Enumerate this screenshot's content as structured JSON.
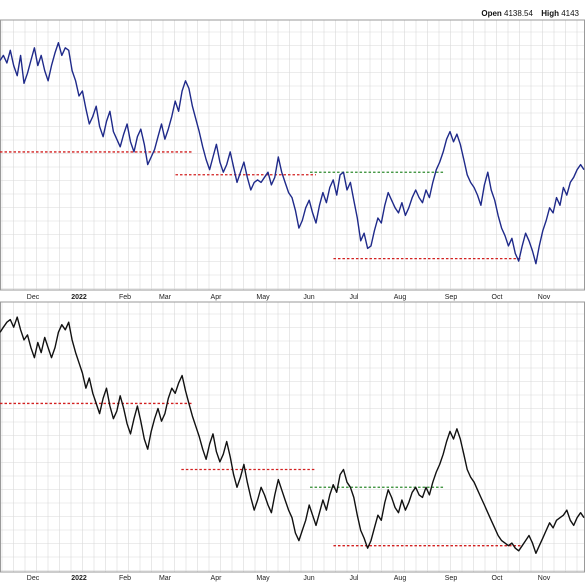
{
  "header": {
    "open_label": "Open",
    "open_value": "4138.54",
    "high_label": "High",
    "high_value": "4143"
  },
  "colors": {
    "top_series": "#1f2a8a",
    "bottom_series": "#111111",
    "support": "#d22020",
    "resistance": "#2e8b2e",
    "grid": "#d9d9d9",
    "border": "#9a9a9a"
  },
  "chart_data": [
    {
      "type": "line",
      "panel": "top",
      "x_tick_labels": [
        "Dec",
        "2022",
        "Feb",
        "Mar",
        "Apr",
        "May",
        "Jun",
        "Jul",
        "Aug",
        "Sep",
        "Oct",
        "Nov"
      ],
      "ylim": [
        0,
        100
      ],
      "grid": true,
      "series": [
        {
          "values": [
            88,
            90,
            87,
            92,
            86,
            82,
            90,
            79,
            83,
            88,
            93,
            86,
            90,
            84,
            80,
            86,
            91,
            95,
            90,
            93,
            92,
            84,
            80,
            74,
            76,
            69,
            63,
            66,
            70,
            62,
            58,
            64,
            68,
            60,
            57,
            54,
            59,
            63,
            56,
            52,
            58,
            61,
            55,
            47,
            50,
            53,
            58,
            63,
            57,
            61,
            66,
            72,
            68,
            76,
            80,
            77,
            70,
            65,
            60,
            54,
            49,
            45,
            50,
            55,
            48,
            44,
            47,
            52,
            46,
            40,
            44,
            48,
            42,
            37,
            40,
            41,
            40,
            42,
            44,
            39,
            42,
            50,
            44,
            40,
            36,
            34,
            29,
            22,
            25,
            30,
            33,
            28,
            24,
            31,
            36,
            32,
            38,
            41,
            35,
            43,
            44,
            37,
            40,
            33,
            26,
            17,
            20,
            14,
            15,
            21,
            26,
            24,
            31,
            36,
            33,
            30,
            28,
            32,
            27,
            30,
            34,
            37,
            34,
            32,
            37,
            34,
            40,
            45,
            48,
            52,
            57,
            60,
            56,
            59,
            55,
            49,
            43,
            40,
            38,
            35,
            31,
            39,
            44,
            37,
            33,
            27,
            22,
            19,
            15,
            18,
            12,
            9,
            15,
            20,
            17,
            13,
            8,
            15,
            21,
            25,
            30,
            28,
            34,
            31,
            38,
            35,
            40,
            42,
            45,
            47,
            45
          ]
        }
      ],
      "levels": [
        {
          "kind": "support",
          "value": 52,
          "x_range": [
            0,
            0.33
          ]
        },
        {
          "kind": "support",
          "value": 43,
          "x_range": [
            0.3,
            0.54
          ]
        },
        {
          "kind": "resistance",
          "value": 44,
          "x_range": [
            0.53,
            0.76
          ]
        },
        {
          "kind": "support",
          "value": 10,
          "x_range": [
            0.57,
            0.89
          ]
        }
      ]
    },
    {
      "type": "line",
      "panel": "bottom",
      "x_tick_labels": [
        "Dec",
        "2022",
        "Feb",
        "Mar",
        "Apr",
        "May",
        "Jun",
        "Jul",
        "Aug",
        "Sep",
        "Oct",
        "Nov"
      ],
      "ylim": [
        0,
        100
      ],
      "grid": true,
      "series": [
        {
          "values": [
            92,
            94,
            96,
            97,
            94,
            98,
            93,
            89,
            91,
            86,
            82,
            88,
            84,
            90,
            86,
            82,
            86,
            92,
            95,
            93,
            96,
            89,
            84,
            80,
            76,
            70,
            74,
            68,
            64,
            60,
            66,
            70,
            63,
            58,
            61,
            67,
            62,
            56,
            52,
            58,
            63,
            57,
            50,
            46,
            53,
            58,
            62,
            57,
            60,
            66,
            70,
            68,
            72,
            75,
            69,
            64,
            59,
            55,
            51,
            46,
            42,
            48,
            52,
            45,
            41,
            44,
            49,
            43,
            36,
            31,
            35,
            40,
            33,
            27,
            22,
            26,
            31,
            28,
            24,
            21,
            28,
            34,
            30,
            26,
            22,
            19,
            13,
            10,
            14,
            18,
            24,
            20,
            16,
            21,
            26,
            22,
            28,
            32,
            29,
            36,
            38,
            33,
            31,
            27,
            20,
            14,
            11,
            7,
            10,
            15,
            20,
            18,
            25,
            30,
            27,
            23,
            21,
            26,
            22,
            25,
            29,
            31,
            28,
            27,
            31,
            28,
            33,
            37,
            40,
            44,
            49,
            53,
            50,
            54,
            50,
            44,
            38,
            35,
            33,
            30,
            27,
            24,
            21,
            18,
            15,
            12,
            10,
            9,
            8,
            9,
            7,
            6,
            8,
            10,
            12,
            9,
            5,
            8,
            11,
            14,
            17,
            15,
            18,
            19,
            20,
            22,
            18,
            16,
            19,
            21,
            19
          ]
        }
      ],
      "levels": [
        {
          "kind": "support",
          "value": 64,
          "x_range": [
            0,
            0.33
          ]
        },
        {
          "kind": "support",
          "value": 38,
          "x_range": [
            0.31,
            0.54
          ]
        },
        {
          "kind": "resistance",
          "value": 31,
          "x_range": [
            0.53,
            0.76
          ]
        },
        {
          "kind": "support",
          "value": 8,
          "x_range": [
            0.57,
            0.89
          ]
        }
      ]
    }
  ]
}
